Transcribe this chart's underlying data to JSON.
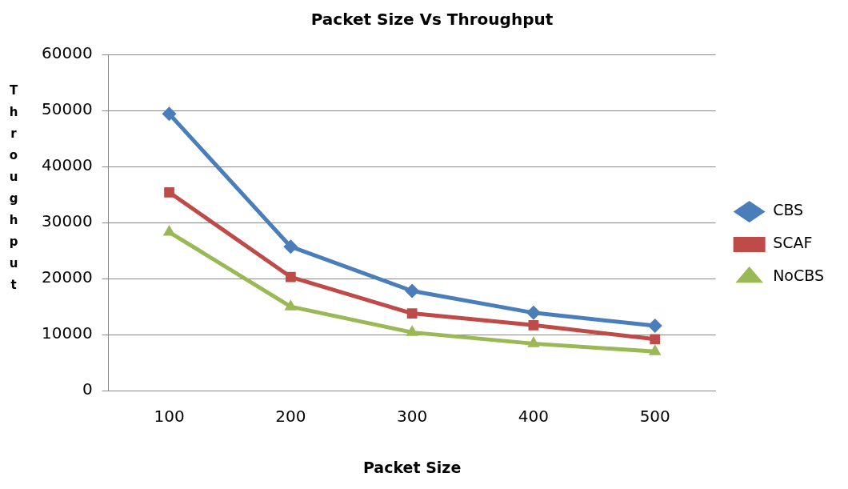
{
  "chart_data": {
    "type": "line",
    "title": "Packet Size Vs Throughput",
    "xlabel": "Packet Size",
    "ylabel": "Throughput",
    "categories": [
      "100",
      "200",
      "300",
      "400",
      "500"
    ],
    "series": [
      {
        "name": "CBS",
        "color": "#4a7ebb",
        "values": [
          49400,
          25700,
          17800,
          13900,
          11600
        ],
        "marker": "diamond"
      },
      {
        "name": "SCAF",
        "color": "#be4b48",
        "values": [
          35400,
          20300,
          13800,
          11700,
          9200
        ],
        "marker": "square"
      },
      {
        "name": "NoCBS",
        "color": "#98b954",
        "values": [
          28300,
          15000,
          10400,
          8400,
          7000
        ],
        "marker": "triangle"
      }
    ],
    "ylim": [
      0,
      60000
    ],
    "yticks": [
      0,
      10000,
      20000,
      30000,
      40000,
      50000,
      60000
    ],
    "grid": "y",
    "legend": "right",
    "line_style": "solid"
  }
}
